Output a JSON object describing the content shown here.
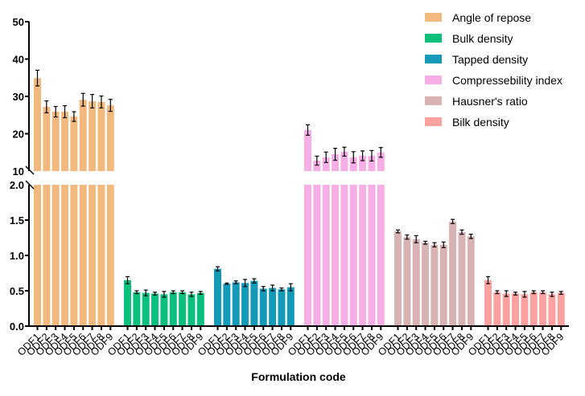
{
  "chart_data": {
    "type": "bar",
    "title": "",
    "xlabel": "Formulation code",
    "ylabel": "",
    "broken_axis": true,
    "y_segments": [
      {
        "name": "lower",
        "ylim": [
          0,
          2.0
        ],
        "ticks": [
          0.0,
          0.5,
          1.0,
          1.5,
          2.0
        ],
        "tick_labels": [
          "0.0",
          "0.5",
          "1.0",
          "1.5",
          "2.0"
        ]
      },
      {
        "name": "upper",
        "ylim": [
          10,
          50
        ],
        "ticks": [
          10,
          20,
          30,
          40,
          50
        ],
        "tick_labels": [
          "10",
          "20",
          "30",
          "40",
          "50"
        ]
      }
    ],
    "categories": [
      "ODF1",
      "ODF2",
      "ODF3",
      "ODF4",
      "ODF5",
      "ODF6",
      "ODF7",
      "ODF8",
      "ODF9"
    ],
    "legend_position": "top-right",
    "grid": false,
    "series": [
      {
        "name": "Angle of repose",
        "color": "#f2b97f",
        "values": [
          34.9,
          27.2,
          25.9,
          25.9,
          24.6,
          29.1,
          28.7,
          28.5,
          27.6
        ],
        "errors": [
          2.1,
          1.6,
          1.4,
          1.6,
          1.3,
          1.7,
          1.8,
          1.6,
          1.6
        ]
      },
      {
        "name": "Bulk density",
        "color": "#0bbf7d",
        "values": [
          0.65,
          0.48,
          0.47,
          0.46,
          0.45,
          0.48,
          0.48,
          0.45,
          0.47
        ],
        "errors": [
          0.05,
          0.02,
          0.04,
          0.02,
          0.04,
          0.02,
          0.02,
          0.03,
          0.02
        ]
      },
      {
        "name": "Tapped density",
        "color": "#139ab8",
        "values": [
          0.81,
          0.6,
          0.62,
          0.61,
          0.64,
          0.53,
          0.54,
          0.52,
          0.55
        ],
        "errors": [
          0.03,
          0.01,
          0.02,
          0.05,
          0.03,
          0.03,
          0.04,
          0.02,
          0.05
        ]
      },
      {
        "name": "Compressebility index",
        "color": "#f5aee6",
        "values": [
          21.0,
          12.8,
          13.7,
          14.5,
          15.2,
          13.7,
          14.1,
          14.1,
          15.0
        ],
        "errors": [
          1.4,
          1.2,
          1.4,
          1.6,
          1.2,
          1.5,
          1.3,
          1.4,
          1.3
        ]
      },
      {
        "name": "Hausner's ratio",
        "color": "#d9b3b3",
        "values": [
          1.34,
          1.26,
          1.23,
          1.18,
          1.15,
          1.15,
          1.48,
          1.33,
          1.27
        ],
        "errors": [
          0.02,
          0.03,
          0.05,
          0.02,
          0.03,
          0.04,
          0.03,
          0.03,
          0.03
        ]
      },
      {
        "name": "Bilk density",
        "color": "#fca0a0",
        "values": [
          0.65,
          0.48,
          0.46,
          0.46,
          0.45,
          0.48,
          0.48,
          0.45,
          0.47
        ],
        "errors": [
          0.05,
          0.02,
          0.04,
          0.02,
          0.04,
          0.02,
          0.02,
          0.03,
          0.02
        ]
      }
    ]
  }
}
